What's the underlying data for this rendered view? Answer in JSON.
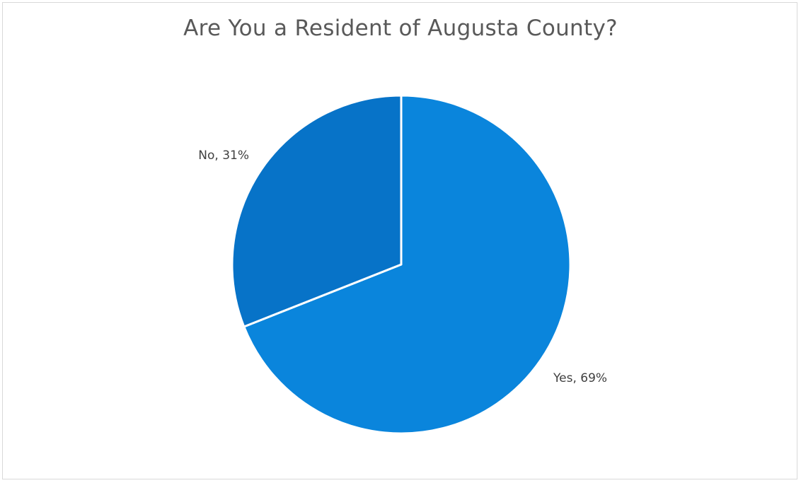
{
  "chart_data": {
    "type": "pie",
    "title": "Are You a Resident of Augusta County?",
    "slices": [
      {
        "name": "Yes",
        "value": 69,
        "color": "#0a85dc",
        "label": "Yes, 69%"
      },
      {
        "name": "No",
        "value": 31,
        "color": "#0773c8",
        "label": "No, 31%"
      }
    ],
    "legend": "none",
    "start_angle": "12 o'clock, clockwise"
  }
}
